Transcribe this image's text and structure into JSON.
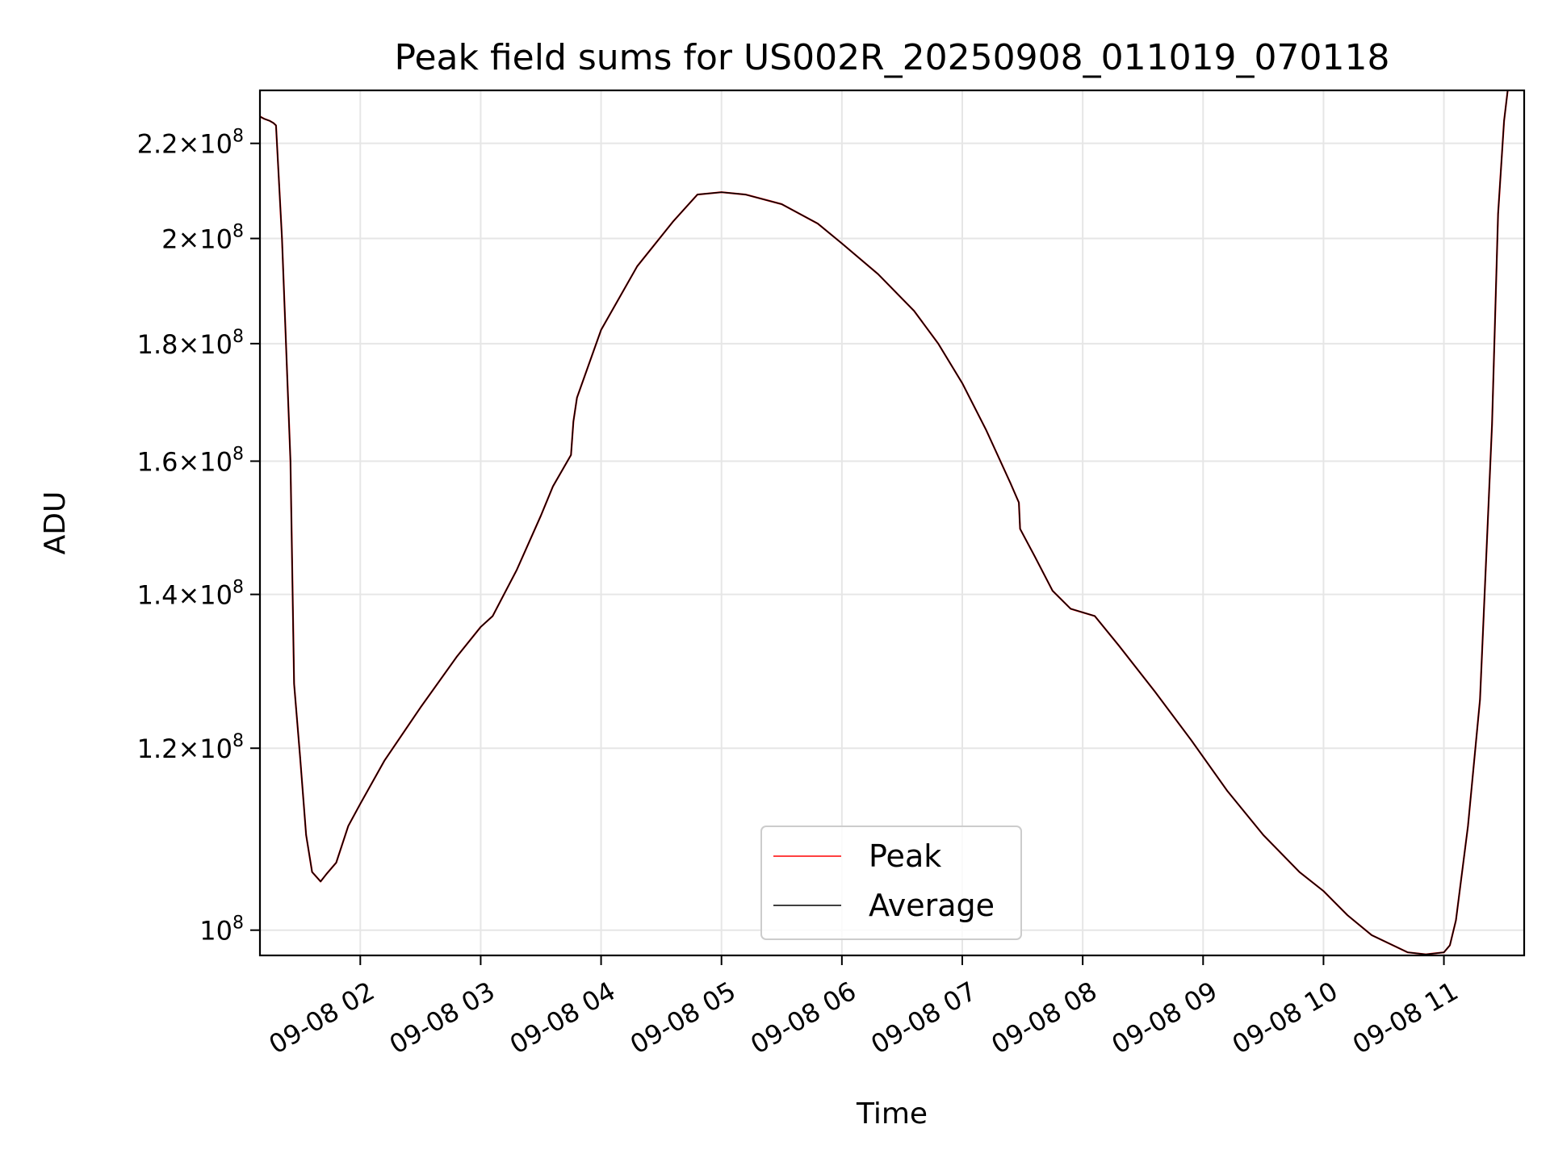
{
  "chart_data": {
    "type": "line",
    "title": "Peak field sums for US002R_20250908_011019_070118",
    "xlabel": "Time",
    "ylabel": "ADU",
    "y_scale": "log",
    "ylim": [
      97500000,
      232000000
    ],
    "xlim": [
      "2025-09-08 01:10",
      "2025-09-08 11:40"
    ],
    "grid": true,
    "legend_location": "lower center",
    "x_ticks": [
      "09-08 02",
      "09-08 03",
      "09-08 04",
      "09-08 05",
      "09-08 06",
      "09-08 07",
      "09-08 08",
      "09-08 09",
      "09-08 10",
      "09-08 11"
    ],
    "y_ticks": [
      {
        "value": 100000000,
        "mantissa": "",
        "base": "10",
        "exp": "8"
      },
      {
        "value": 120000000,
        "mantissa": "1.2",
        "base": "10",
        "exp": "8"
      },
      {
        "value": 140000000,
        "mantissa": "1.4",
        "base": "10",
        "exp": "8"
      },
      {
        "value": 160000000,
        "mantissa": "1.6",
        "base": "10",
        "exp": "8"
      },
      {
        "value": 180000000,
        "mantissa": "1.8",
        "base": "10",
        "exp": "8"
      },
      {
        "value": 200000000,
        "mantissa": "2",
        "base": "10",
        "exp": "8"
      },
      {
        "value": 220000000,
        "mantissa": "2.2",
        "base": "10",
        "exp": "8"
      }
    ],
    "times_hours_of_day": [
      1.167,
      1.2,
      1.25,
      1.28,
      1.3,
      1.35,
      1.42,
      1.45,
      1.5,
      1.55,
      1.6,
      1.67,
      1.72,
      1.8,
      1.9,
      2.0,
      2.2,
      2.5,
      2.8,
      3.0,
      3.1,
      3.3,
      3.5,
      3.6,
      3.75,
      3.77,
      3.8,
      4.0,
      4.3,
      4.6,
      4.8,
      5.0,
      5.2,
      5.5,
      5.8,
      6.0,
      6.3,
      6.6,
      6.8,
      7.0,
      7.2,
      7.4,
      7.47,
      7.48,
      7.6,
      7.75,
      7.9,
      8.0,
      8.1,
      8.3,
      8.6,
      8.9,
      9.2,
      9.5,
      9.8,
      10.0,
      10.2,
      10.4,
      10.7,
      10.85,
      11.0,
      11.05,
      11.1,
      11.2,
      11.3,
      11.4,
      11.45,
      11.5,
      11.53
    ],
    "series": [
      {
        "name": "Peak",
        "color": "#ff0000",
        "values": [
          226000000,
          225500000,
          225000000,
          224500000,
          224000000,
          200000000,
          160000000,
          128000000,
          119000000,
          110000000,
          106000000,
          105000000,
          105800000,
          107000000,
          111000000,
          113500000,
          118500000,
          125000000,
          131500000,
          135500000,
          137000000,
          143500000,
          151500000,
          156000000,
          161000000,
          166500000,
          170500000,
          182500000,
          194500000,
          203500000,
          209000000,
          209500000,
          209000000,
          207000000,
          203000000,
          199000000,
          193000000,
          186000000,
          180000000,
          173000000,
          165000000,
          156500000,
          153500000,
          149500000,
          145500000,
          140500000,
          138000000,
          137500000,
          137000000,
          133000000,
          127000000,
          121000000,
          115000000,
          110000000,
          106000000,
          104000000,
          101500000,
          99500000,
          97800000,
          97600000,
          97800000,
          98500000,
          101000000,
          111000000,
          126000000,
          166000000,
          205000000,
          225000000,
          232000000
        ]
      },
      {
        "name": "Average",
        "color": "#000000",
        "values": [
          226000000,
          225500000,
          225000000,
          224500000,
          224000000,
          200000000,
          160000000,
          128000000,
          119000000,
          110000000,
          106000000,
          105000000,
          105800000,
          107000000,
          111000000,
          113500000,
          118500000,
          125000000,
          131500000,
          135500000,
          137000000,
          143500000,
          151500000,
          156000000,
          161000000,
          166500000,
          170500000,
          182500000,
          194500000,
          203500000,
          209000000,
          209500000,
          209000000,
          207000000,
          203000000,
          199000000,
          193000000,
          186000000,
          180000000,
          173000000,
          165000000,
          156500000,
          153500000,
          149500000,
          145500000,
          140500000,
          138000000,
          137500000,
          137000000,
          133000000,
          127000000,
          121000000,
          115000000,
          110000000,
          106000000,
          104000000,
          101500000,
          99500000,
          97800000,
          97600000,
          97800000,
          98500000,
          101000000,
          111000000,
          126000000,
          166000000,
          205000000,
          225000000,
          232000000
        ]
      }
    ]
  }
}
